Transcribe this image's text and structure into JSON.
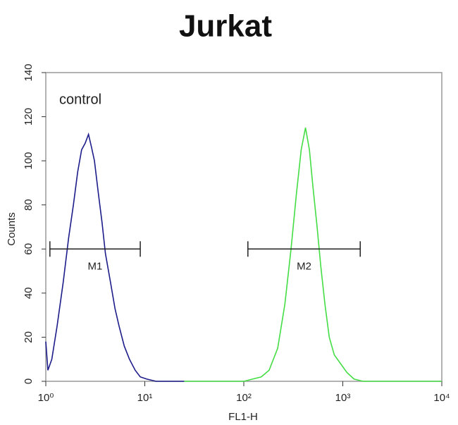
{
  "chart_data": {
    "type": "histogram-overlay",
    "title": "Jurkat",
    "x_label": "FL1-H",
    "y_label": "Counts",
    "annotation": "control",
    "x_scale": "log",
    "xlim": [
      1,
      10000
    ],
    "xticks": [
      {
        "value": 1,
        "label": "10⁰"
      },
      {
        "value": 10,
        "label": "10¹"
      },
      {
        "value": 100,
        "label": "10²"
      },
      {
        "value": 1000,
        "label": "10³"
      },
      {
        "value": 10000,
        "label": "10⁴"
      }
    ],
    "ylim": [
      0,
      140
    ],
    "yticks": [
      0,
      20,
      40,
      60,
      80,
      100,
      120,
      140
    ],
    "series": [
      {
        "color": "#1c1c8a",
        "x": [
          1.0,
          1.05,
          1.15,
          1.3,
          1.5,
          1.7,
          1.9,
          2.1,
          2.3,
          2.5,
          2.7,
          2.9,
          3.1,
          3.4,
          3.7,
          4.0,
          4.5,
          5.0,
          5.5,
          6.2,
          7.0,
          8.0,
          9.0,
          10.5,
          13,
          25
        ],
        "values": [
          18,
          5,
          10,
          25,
          45,
          65,
          80,
          95,
          105,
          108,
          112,
          106,
          100,
          85,
          72,
          58,
          45,
          33,
          25,
          16,
          10,
          5,
          2,
          1,
          0,
          0
        ]
      },
      {
        "color": "#44dd44",
        "x": [
          25,
          100,
          150,
          180,
          220,
          260,
          300,
          340,
          380,
          420,
          460,
          500,
          550,
          600,
          660,
          730,
          820,
          950,
          1100,
          1300,
          1600,
          10000
        ],
        "values": [
          0,
          0,
          2,
          5,
          15,
          35,
          60,
          85,
          105,
          115,
          105,
          88,
          70,
          52,
          35,
          20,
          12,
          8,
          4,
          1,
          0,
          0
        ]
      }
    ],
    "markers": [
      {
        "label": "M1",
        "x": [
          1.1,
          9
        ],
        "y": 60
      },
      {
        "label": "M2",
        "x": [
          110,
          1500
        ],
        "y": 60
      }
    ]
  }
}
